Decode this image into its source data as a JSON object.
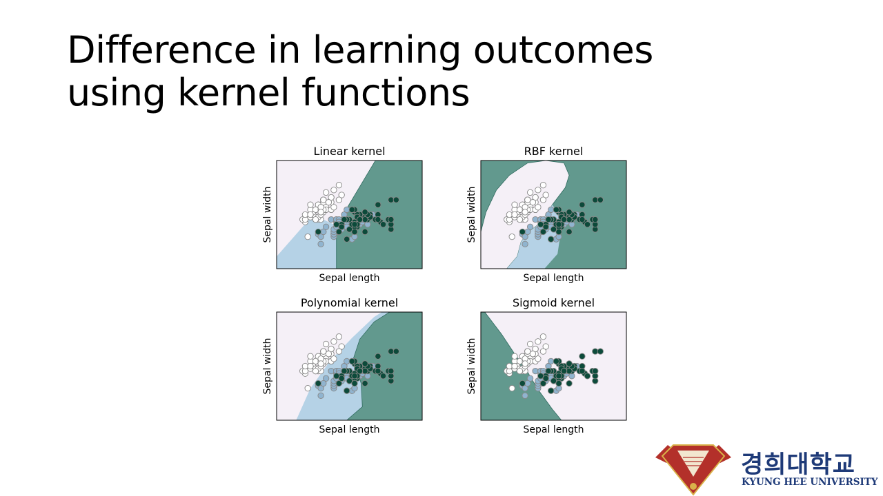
{
  "slide": {
    "title_line1": "Difference in learning outcomes",
    "title_line2": "using kernel functions"
  },
  "logo": {
    "korean": "경희대학교",
    "english": "KYUNG HEE UNIVERSITY",
    "colors": {
      "emblem": "#b3302a",
      "text": "#1e3a78"
    }
  },
  "colors": {
    "class0": "#f5f0f7",
    "class1": "#b5d2e6",
    "class2": "#62998e",
    "point0": "#ffffff",
    "point1": "#90b4cf",
    "point2": "#0c4a3a",
    "point_edge": "#888888"
  },
  "chart_data": [
    {
      "type": "scatter",
      "title": "Linear kernel",
      "xlabel": "Sepal length",
      "ylabel": "Sepal width",
      "xlim": [
        3.3,
        8.9
      ],
      "ylim": [
        1.0,
        5.4
      ],
      "region_class1": [
        [
          3.3,
          1.0
        ],
        [
          5.6,
          1.0
        ],
        [
          5.6,
          2.75
        ],
        [
          5.1,
          3.0
        ],
        [
          4.55,
          3.0
        ],
        [
          3.3,
          1.5
        ]
      ],
      "region_class2": [
        [
          5.6,
          1.0
        ],
        [
          8.9,
          1.0
        ],
        [
          8.9,
          5.4
        ],
        [
          7.1,
          5.4
        ],
        [
          5.6,
          2.75
        ]
      ]
    },
    {
      "type": "scatter",
      "title": "RBF kernel",
      "xlabel": "Sepal length",
      "ylabel": "Sepal width",
      "xlim": [
        3.3,
        8.9
      ],
      "ylim": [
        1.0,
        5.4
      ],
      "region_class0": [
        [
          3.3,
          2.5
        ],
        [
          3.5,
          3.3
        ],
        [
          3.9,
          4.2
        ],
        [
          4.4,
          4.8
        ],
        [
          5.1,
          5.3
        ],
        [
          5.8,
          5.4
        ],
        [
          6.5,
          5.3
        ],
        [
          6.7,
          4.8
        ],
        [
          6.55,
          4.3
        ],
        [
          6.05,
          3.6
        ],
        [
          5.75,
          3.1
        ],
        [
          5.45,
          2.75
        ],
        [
          5.15,
          2.5
        ],
        [
          4.85,
          2.1
        ],
        [
          4.7,
          1.5
        ],
        [
          4.3,
          1.0
        ],
        [
          3.3,
          1.0
        ]
      ],
      "region_class1": [
        [
          4.7,
          1.5
        ],
        [
          4.85,
          2.1
        ],
        [
          5.15,
          2.5
        ],
        [
          5.45,
          2.75
        ],
        [
          5.75,
          3.1
        ],
        [
          6.05,
          3.6
        ],
        [
          6.45,
          3.0
        ],
        [
          6.25,
          1.6
        ],
        [
          5.75,
          1.0
        ],
        [
          4.3,
          1.0
        ]
      ]
    },
    {
      "type": "scatter",
      "title": "Polynomial kernel",
      "xlabel": "Sepal length",
      "ylabel": "Sepal width",
      "xlim": [
        3.3,
        8.9
      ],
      "ylim": [
        1.0,
        5.4
      ],
      "region_class1": [
        [
          4.05,
          1.0
        ],
        [
          4.6,
          2.3
        ],
        [
          5.35,
          3.4
        ],
        [
          6.2,
          4.35
        ],
        [
          7.05,
          5.2
        ],
        [
          7.35,
          5.4
        ],
        [
          7.65,
          5.4
        ],
        [
          7.05,
          5.0
        ],
        [
          6.5,
          4.3
        ],
        [
          6.25,
          3.5
        ],
        [
          6.55,
          2.5
        ],
        [
          6.6,
          1.55
        ],
        [
          6.0,
          1.0
        ]
      ],
      "region_class2": [
        [
          6.0,
          1.0
        ],
        [
          6.6,
          1.55
        ],
        [
          6.55,
          2.5
        ],
        [
          6.25,
          3.5
        ],
        [
          6.5,
          4.3
        ],
        [
          7.05,
          5.0
        ],
        [
          7.65,
          5.4
        ],
        [
          8.9,
          5.4
        ],
        [
          8.9,
          1.0
        ]
      ]
    },
    {
      "type": "scatter",
      "title": "Sigmoid kernel",
      "xlabel": "Sepal length",
      "ylabel": "Sepal width",
      "xlim": [
        3.3,
        8.9
      ],
      "ylim": [
        1.0,
        5.4
      ],
      "region_class2": [
        [
          3.3,
          5.4
        ],
        [
          3.45,
          5.4
        ],
        [
          4.1,
          4.5
        ],
        [
          4.6,
          3.7
        ],
        [
          5.05,
          3.05
        ],
        [
          5.5,
          2.25
        ],
        [
          6.05,
          1.45
        ],
        [
          6.4,
          1.0
        ],
        [
          3.3,
          1.0
        ]
      ],
      "region_class1": [
        [
          5.5,
          2.25
        ],
        [
          6.05,
          1.45
        ],
        [
          6.4,
          1.0
        ],
        [
          6.15,
          1.0
        ],
        [
          5.7,
          1.7
        ]
      ]
    }
  ],
  "points": {
    "class0": [
      [
        5.1,
        3.5
      ],
      [
        4.9,
        3.0
      ],
      [
        4.7,
        3.2
      ],
      [
        4.6,
        3.1
      ],
      [
        5.0,
        3.6
      ],
      [
        5.4,
        3.9
      ],
      [
        4.6,
        3.4
      ],
      [
        5.0,
        3.4
      ],
      [
        4.4,
        2.9
      ],
      [
        4.9,
        3.1
      ],
      [
        5.4,
        3.7
      ],
      [
        4.8,
        3.4
      ],
      [
        4.8,
        3.0
      ],
      [
        4.3,
        3.0
      ],
      [
        5.8,
        4.0
      ],
      [
        5.7,
        4.4
      ],
      [
        5.4,
        3.9
      ],
      [
        5.1,
        3.5
      ],
      [
        5.7,
        3.8
      ],
      [
        5.1,
        3.8
      ],
      [
        5.4,
        3.4
      ],
      [
        5.1,
        3.7
      ],
      [
        4.6,
        3.6
      ],
      [
        5.1,
        3.3
      ],
      [
        4.8,
        3.4
      ],
      [
        5.0,
        3.0
      ],
      [
        5.0,
        3.4
      ],
      [
        5.2,
        3.5
      ],
      [
        5.2,
        3.4
      ],
      [
        4.7,
        3.2
      ],
      [
        4.8,
        3.1
      ],
      [
        5.4,
        3.4
      ],
      [
        5.2,
        4.1
      ],
      [
        5.5,
        4.2
      ],
      [
        4.9,
        3.1
      ],
      [
        5.0,
        3.2
      ],
      [
        5.5,
        3.5
      ],
      [
        4.9,
        3.6
      ],
      [
        4.4,
        3.0
      ],
      [
        5.1,
        3.4
      ],
      [
        5.0,
        3.5
      ],
      [
        4.5,
        2.3
      ],
      [
        4.4,
        3.2
      ],
      [
        5.0,
        3.5
      ],
      [
        5.1,
        3.8
      ],
      [
        4.8,
        3.0
      ],
      [
        5.1,
        3.8
      ],
      [
        4.6,
        3.2
      ],
      [
        5.3,
        3.7
      ],
      [
        5.0,
        3.3
      ]
    ],
    "class1": [
      [
        7.0,
        3.2
      ],
      [
        6.4,
        3.2
      ],
      [
        6.9,
        3.1
      ],
      [
        5.5,
        2.3
      ],
      [
        6.5,
        2.8
      ],
      [
        5.7,
        2.8
      ],
      [
        6.3,
        3.3
      ],
      [
        4.9,
        2.4
      ],
      [
        6.6,
        2.9
      ],
      [
        5.2,
        2.7
      ],
      [
        5.0,
        2.0
      ],
      [
        5.9,
        3.0
      ],
      [
        6.0,
        2.2
      ],
      [
        6.1,
        2.9
      ],
      [
        5.6,
        2.9
      ],
      [
        6.7,
        3.1
      ],
      [
        5.6,
        3.0
      ],
      [
        5.8,
        2.7
      ],
      [
        6.2,
        2.2
      ],
      [
        5.6,
        2.5
      ],
      [
        5.9,
        3.2
      ],
      [
        6.1,
        2.8
      ],
      [
        6.3,
        2.5
      ],
      [
        6.1,
        2.8
      ],
      [
        6.4,
        2.9
      ],
      [
        6.6,
        3.0
      ],
      [
        6.8,
        2.8
      ],
      [
        6.7,
        3.0
      ],
      [
        6.0,
        2.9
      ],
      [
        5.7,
        2.6
      ],
      [
        5.5,
        2.4
      ],
      [
        5.5,
        2.4
      ],
      [
        5.8,
        2.7
      ],
      [
        6.0,
        2.7
      ],
      [
        5.4,
        3.0
      ],
      [
        6.0,
        3.4
      ],
      [
        6.7,
        3.1
      ],
      [
        6.3,
        2.3
      ],
      [
        5.6,
        3.0
      ],
      [
        5.5,
        2.5
      ],
      [
        5.5,
        2.6
      ],
      [
        6.1,
        3.0
      ],
      [
        5.8,
        2.6
      ],
      [
        5.0,
        2.3
      ],
      [
        5.6,
        2.7
      ],
      [
        5.7,
        3.0
      ],
      [
        5.7,
        2.9
      ],
      [
        6.2,
        2.9
      ],
      [
        5.1,
        2.5
      ],
      [
        5.7,
        2.8
      ]
    ],
    "class2": [
      [
        6.3,
        3.3
      ],
      [
        5.8,
        2.7
      ],
      [
        7.1,
        3.0
      ],
      [
        6.3,
        2.9
      ],
      [
        6.5,
        3.0
      ],
      [
        7.6,
        3.0
      ],
      [
        4.9,
        2.5
      ],
      [
        7.3,
        2.9
      ],
      [
        6.7,
        2.5
      ],
      [
        7.2,
        3.6
      ],
      [
        6.5,
        3.2
      ],
      [
        6.4,
        2.7
      ],
      [
        6.8,
        3.0
      ],
      [
        5.7,
        2.5
      ],
      [
        5.8,
        2.8
      ],
      [
        6.4,
        3.2
      ],
      [
        6.5,
        3.0
      ],
      [
        7.7,
        3.8
      ],
      [
        7.7,
        2.6
      ],
      [
        6.0,
        2.2
      ],
      [
        6.9,
        3.2
      ],
      [
        5.6,
        2.8
      ],
      [
        7.7,
        2.8
      ],
      [
        6.3,
        2.7
      ],
      [
        6.7,
        3.3
      ],
      [
        7.2,
        3.2
      ],
      [
        6.2,
        2.8
      ],
      [
        6.1,
        3.0
      ],
      [
        6.4,
        2.8
      ],
      [
        7.2,
        3.0
      ],
      [
        7.4,
        2.8
      ],
      [
        7.9,
        3.8
      ],
      [
        6.4,
        2.8
      ],
      [
        6.3,
        2.8
      ],
      [
        6.1,
        2.6
      ],
      [
        7.7,
        3.0
      ],
      [
        6.3,
        3.4
      ],
      [
        6.4,
        3.1
      ],
      [
        6.0,
        3.0
      ],
      [
        6.9,
        3.1
      ],
      [
        6.7,
        3.1
      ],
      [
        6.9,
        3.1
      ],
      [
        5.8,
        2.7
      ],
      [
        6.8,
        3.2
      ],
      [
        6.7,
        3.3
      ],
      [
        6.7,
        3.0
      ],
      [
        6.3,
        2.5
      ],
      [
        6.5,
        3.0
      ],
      [
        6.2,
        3.4
      ],
      [
        5.9,
        3.0
      ]
    ]
  }
}
